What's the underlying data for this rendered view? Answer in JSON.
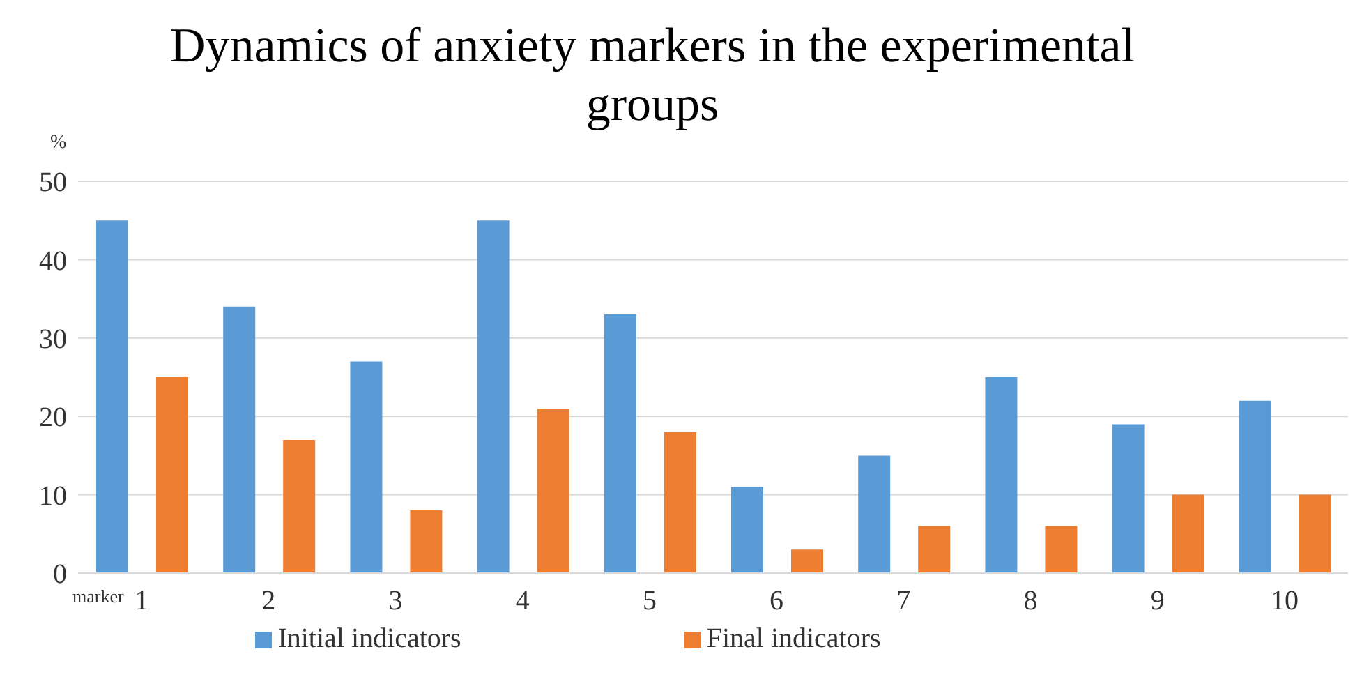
{
  "chart_data": {
    "type": "bar",
    "title": "Dynamics of anxiety markers in the experimental groups",
    "xlabel": "marker",
    "ylabel": "%",
    "categories": [
      "1",
      "2",
      "3",
      "4",
      "5",
      "6",
      "7",
      "8",
      "9",
      "10"
    ],
    "series": [
      {
        "name": "Initial indicators",
        "color": "#5b9bd5",
        "values": [
          45,
          34,
          27,
          45,
          33,
          11,
          15,
          25,
          19,
          22
        ]
      },
      {
        "name": "Final indicators",
        "color": "#ed7d31",
        "values": [
          25,
          17,
          8,
          21,
          18,
          3,
          6,
          6,
          10,
          10
        ]
      }
    ],
    "ylim": [
      0,
      50
    ],
    "yticks": [
      0,
      10,
      20,
      30,
      40,
      50
    ],
    "grid": "y",
    "legend": "bottom"
  }
}
